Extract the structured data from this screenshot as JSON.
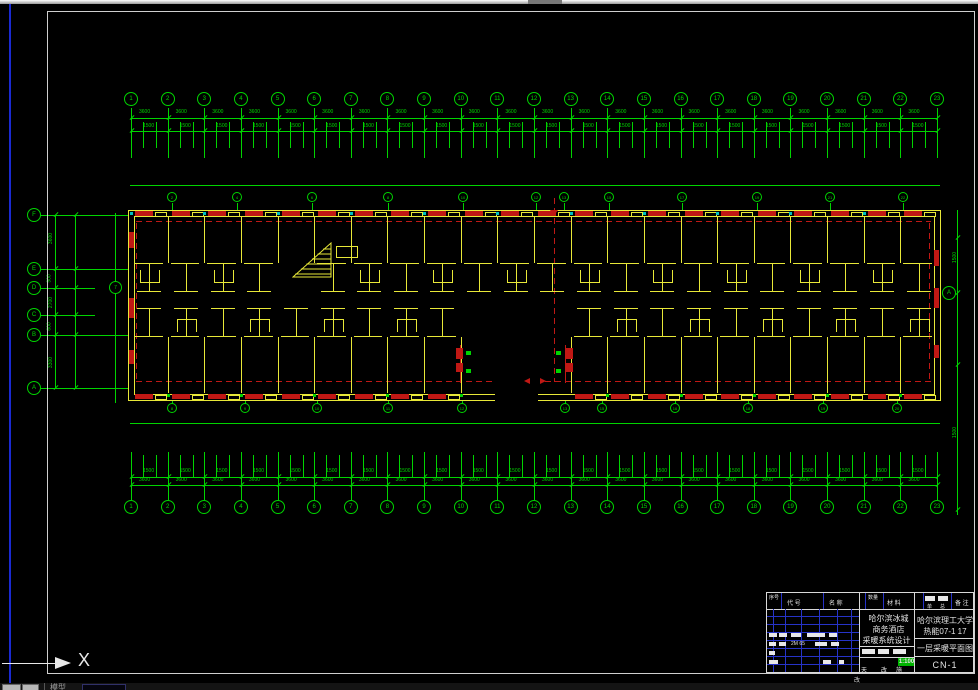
{
  "window": {
    "model_tab_label": "模型"
  },
  "ucs": {
    "x_label": "X"
  },
  "drawing": {
    "grid": {
      "top_labels": [
        "1",
        "2",
        "3",
        "4",
        "5",
        "6",
        "7",
        "8",
        "9",
        "10",
        "11",
        "12",
        "13",
        "14",
        "15",
        "16",
        "17",
        "18",
        "19",
        "20",
        "21",
        "22",
        "23"
      ],
      "bottom_labels": [
        "1",
        "2",
        "3",
        "4",
        "5",
        "6",
        "7",
        "8",
        "9",
        "10",
        "11",
        "12",
        "13",
        "14",
        "15",
        "16",
        "17",
        "18",
        "19",
        "20",
        "21",
        "22",
        "23"
      ],
      "left_labels": [
        "F",
        "E",
        "D",
        "C",
        "B",
        "A"
      ],
      "right_label": "A",
      "mid_left_label": "7",
      "top_sub_labels": [
        "2",
        "4",
        "6",
        "8",
        "10",
        "12",
        "13",
        "15",
        "17",
        "19",
        "21",
        "22"
      ],
      "bottom_sub_labels": [
        "8",
        "9",
        "10",
        "11",
        "12",
        "13",
        "15",
        "16",
        "18",
        "19",
        "20"
      ]
    },
    "dims": {
      "bay": "3600",
      "window": "1500",
      "left": [
        "3600",
        "900",
        "2700",
        "600",
        "3300"
      ],
      "right": [
        "1500",
        "1500"
      ]
    }
  },
  "title_block": {
    "header": {
      "col1": "序号",
      "col2": "代  号",
      "col3": "名  称",
      "col4": "数量",
      "col5": "材  料",
      "col6a": "单",
      "col6b": "总",
      "col7": "备 注"
    },
    "bom_note": "2M 65",
    "project": {
      "line1": "哈尔滨冰城",
      "line2": "商务酒店",
      "line3": "采暖系统设计"
    },
    "org": {
      "line1": "哈尔滨理工大学",
      "line2": "热能07-1 17"
    },
    "sheet": {
      "title": "一层采暖平面图",
      "number": "CN-1",
      "scale": "1:100"
    },
    "footer": {
      "c1": "天",
      "c2": "改",
      "c3": "施",
      "below": "改"
    }
  }
}
